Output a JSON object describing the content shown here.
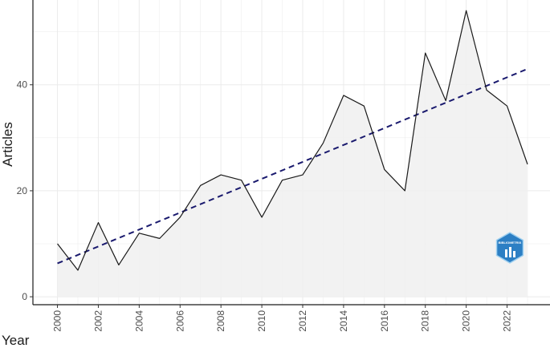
{
  "chart_data": {
    "type": "area",
    "title": "",
    "xlabel": "Year",
    "ylabel": "Articles",
    "x": [
      2000,
      2001,
      2002,
      2003,
      2004,
      2005,
      2006,
      2007,
      2008,
      2009,
      2010,
      2011,
      2012,
      2013,
      2014,
      2015,
      2016,
      2017,
      2018,
      2019,
      2020,
      2021,
      2022,
      2023
    ],
    "series": [
      {
        "values": [
          10,
          5,
          14,
          6,
          12,
          11,
          15,
          21,
          23,
          22,
          15,
          22,
          23,
          29,
          38,
          36,
          24,
          20,
          46,
          37,
          54,
          39,
          36,
          25
        ]
      }
    ],
    "trend_line": {
      "style": "dashed",
      "x": [
        2000,
        2023
      ],
      "y": [
        6.3,
        43
      ]
    },
    "x_tick_labels": [
      "2000",
      "2002",
      "2004",
      "2006",
      "2008",
      "2010",
      "2012",
      "2014",
      "2016",
      "2018",
      "2020",
      "2022"
    ],
    "y_tick_labels": [
      "0",
      "20",
      "40"
    ],
    "ylim": [
      -1.5,
      56
    ],
    "xlim": [
      1998.8,
      2024.1
    ],
    "grid": true,
    "colors": {
      "line": "#1a1a1a",
      "fill": "#f0f0f0",
      "trend": "#1a1a6e",
      "grid": "#ebebeb",
      "logo": "#2c7fc4"
    },
    "watermark_icon": "bibliometrix-logo-icon",
    "watermark_text": "BIBLIOMETRIX"
  }
}
